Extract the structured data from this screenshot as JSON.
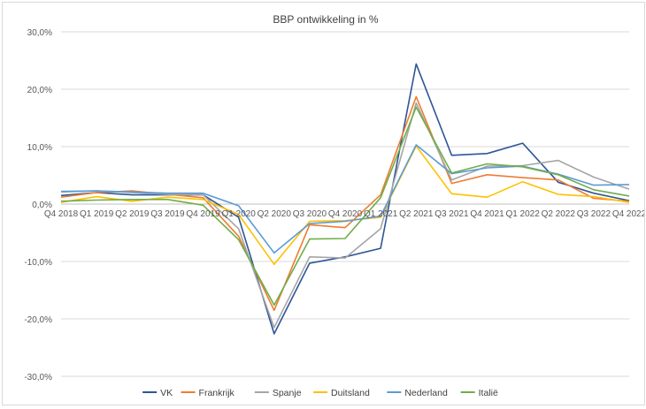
{
  "chart_data": {
    "type": "line",
    "title": "BBP ontwikkeling in %",
    "xlabel": "",
    "ylabel": "",
    "ylim": [
      -30,
      30
    ],
    "yticks": [
      30,
      20,
      10,
      0,
      -10,
      -20,
      -30
    ],
    "ytick_labels": [
      "30,0%",
      "20,0%",
      "10,0%",
      "0,0%",
      "-10,0%",
      "-20,0%",
      "-30,0%"
    ],
    "grid": true,
    "legend_position": "bottom",
    "categories": [
      "Q4 2018",
      "Q1 2019",
      "Q2 2019",
      "Q3 2019",
      "Q4 2019",
      "Q1 2020",
      "Q2 2020",
      "Q3 2020",
      "Q4 2020",
      "Q1 2021",
      "Q2 2021",
      "Q3 2021",
      "Q4 2021",
      "Q1 2022",
      "Q2 2022",
      "Q3 2022",
      "Q4 2022"
    ],
    "series": [
      {
        "name": "VK",
        "color": "#2e5597",
        "values": [
          1.5,
          2.0,
          1.6,
          1.6,
          1.6,
          -2.3,
          -22.6,
          -10.3,
          -9.2,
          -7.7,
          24.4,
          8.5,
          8.8,
          10.6,
          3.8,
          1.9,
          0.6
        ]
      },
      {
        "name": "Frankrijk",
        "color": "#ed7d31",
        "values": [
          1.2,
          2.0,
          2.3,
          1.7,
          1.1,
          -5.6,
          -18.5,
          -3.6,
          -4.1,
          1.6,
          18.7,
          3.6,
          5.1,
          4.6,
          4.2,
          1.0,
          0.5
        ]
      },
      {
        "name": "Spanje",
        "color": "#a5a5a5",
        "values": [
          2.1,
          2.3,
          2.0,
          1.7,
          1.6,
          -4.3,
          -21.5,
          -9.2,
          -9.4,
          -4.3,
          17.6,
          4.2,
          6.6,
          6.7,
          7.6,
          4.7,
          2.6
        ]
      },
      {
        "name": "Duitsland",
        "color": "#ffc000",
        "values": [
          0.3,
          1.3,
          0.5,
          1.2,
          0.8,
          -1.8,
          -10.5,
          -3.0,
          -2.9,
          -2.3,
          10.1,
          1.8,
          1.2,
          3.9,
          1.7,
          1.3,
          0.3
        ]
      },
      {
        "name": "Nederland",
        "color": "#5b9bd5",
        "values": [
          2.2,
          2.3,
          2.1,
          1.9,
          1.9,
          -0.3,
          -8.5,
          -3.4,
          -3.0,
          -2.1,
          10.3,
          5.3,
          6.3,
          6.6,
          5.2,
          3.3,
          3.4
        ]
      },
      {
        "name": "Italië",
        "color": "#70ad47",
        "values": [
          0.5,
          0.7,
          0.8,
          0.8,
          -0.2,
          -6.2,
          -17.6,
          -6.1,
          -6.0,
          1.1,
          16.9,
          5.4,
          7.0,
          6.5,
          5.1,
          2.5,
          1.4
        ]
      }
    ]
  }
}
